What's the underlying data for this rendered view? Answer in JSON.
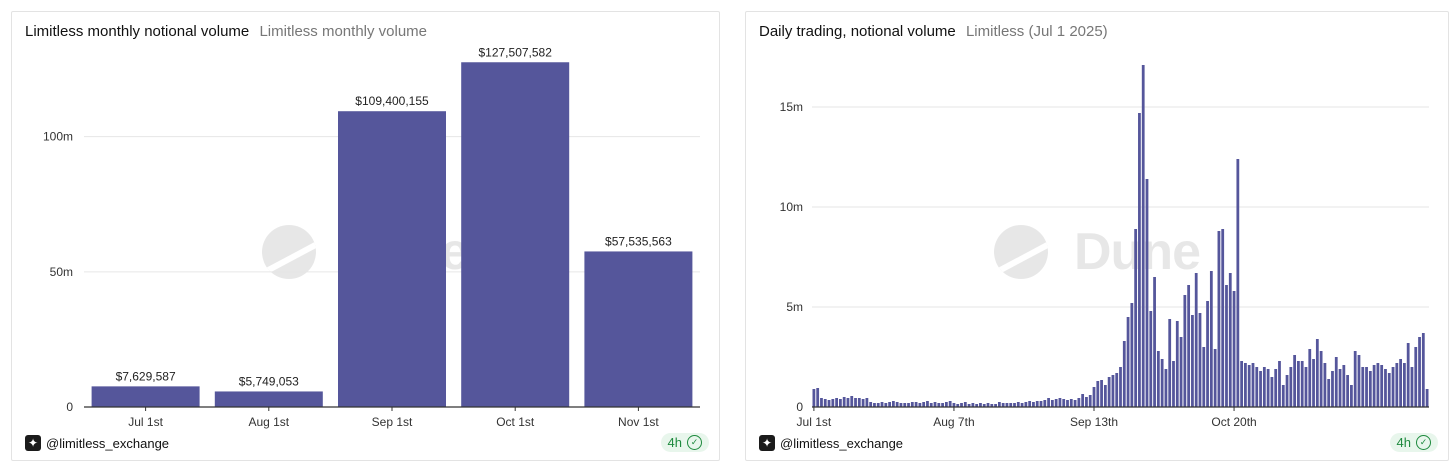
{
  "footer": {
    "handle": "@limitless_exchange",
    "age": "4h"
  },
  "watermark": "Dune",
  "colors": {
    "bar": "#55569b",
    "grid": "#e6e6e6",
    "axis": "#333333",
    "text": "#333333"
  },
  "chart_data": [
    {
      "type": "bar",
      "title": "Limitless monthly notional volume",
      "subtitle": "Limitless monthly volume",
      "categories": [
        "Jul 1st",
        "Aug 1st",
        "Sep 1st",
        "Oct 1st",
        "Nov 1st"
      ],
      "values": [
        7629587,
        5749053,
        109400155,
        127507582,
        57535563
      ],
      "data_labels": [
        "$7,629,587",
        "$5,749,053",
        "$109,400,155",
        "$127,507,582",
        "$57,535,563"
      ],
      "yticks": [
        0,
        50000000,
        100000000
      ],
      "ytick_labels": [
        "0",
        "50m",
        "100m"
      ],
      "ylim": [
        0,
        135000000
      ],
      "grid": true
    },
    {
      "type": "bar",
      "title": "Daily trading, notional volume",
      "subtitle": "Limitless (Jul 1 2025)",
      "xtick_labels": [
        "Jul 1st",
        "Aug 7th",
        "Sep 13th",
        "Oct 20th"
      ],
      "xtick_indices": [
        0,
        37,
        74,
        111
      ],
      "yticks": [
        0,
        5000000,
        10000000,
        15000000
      ],
      "ytick_labels": [
        "0",
        "5m",
        "10m",
        "15m"
      ],
      "ylim": [
        0,
        17500000
      ],
      "grid": true,
      "values": [
        900000,
        950000,
        450000,
        400000,
        350000,
        400000,
        450000,
        400000,
        500000,
        450000,
        550000,
        450000,
        450000,
        400000,
        450000,
        250000,
        200000,
        200000,
        250000,
        200000,
        250000,
        300000,
        250000,
        200000,
        200000,
        200000,
        250000,
        250000,
        200000,
        250000,
        300000,
        200000,
        250000,
        200000,
        200000,
        250000,
        300000,
        200000,
        150000,
        200000,
        250000,
        150000,
        200000,
        150000,
        200000,
        150000,
        200000,
        150000,
        150000,
        250000,
        200000,
        200000,
        200000,
        200000,
        250000,
        200000,
        250000,
        300000,
        250000,
        300000,
        300000,
        350000,
        450000,
        350000,
        400000,
        450000,
        400000,
        350000,
        400000,
        350000,
        450000,
        650000,
        500000,
        600000,
        1000000,
        1300000,
        1350000,
        1100000,
        1500000,
        1600000,
        1700000,
        2000000,
        3300000,
        4500000,
        5200000,
        8900000,
        14700000,
        17100000,
        11400000,
        4800000,
        6500000,
        2800000,
        2400000,
        1900000,
        4400000,
        2300000,
        4300000,
        3500000,
        5600000,
        6100000,
        4600000,
        6700000,
        4700000,
        3000000,
        5300000,
        6800000,
        2900000,
        8800000,
        8900000,
        6100000,
        6700000,
        5800000,
        12400000,
        2300000,
        2200000,
        2100000,
        2200000,
        2000000,
        1800000,
        2000000,
        1900000,
        1500000,
        1900000,
        2300000,
        1100000,
        1600000,
        2000000,
        2600000,
        2300000,
        2300000,
        2000000,
        2900000,
        2400000,
        3400000,
        2800000,
        2200000,
        1400000,
        1800000,
        2500000,
        1900000,
        2100000,
        1600000,
        1100000,
        2800000,
        2600000,
        2000000,
        2000000,
        1800000,
        2100000,
        2200000,
        2100000,
        1900000,
        1700000,
        2000000,
        2200000,
        2400000,
        2200000,
        3200000,
        2000000,
        3000000,
        3500000,
        3700000,
        900000
      ]
    }
  ]
}
